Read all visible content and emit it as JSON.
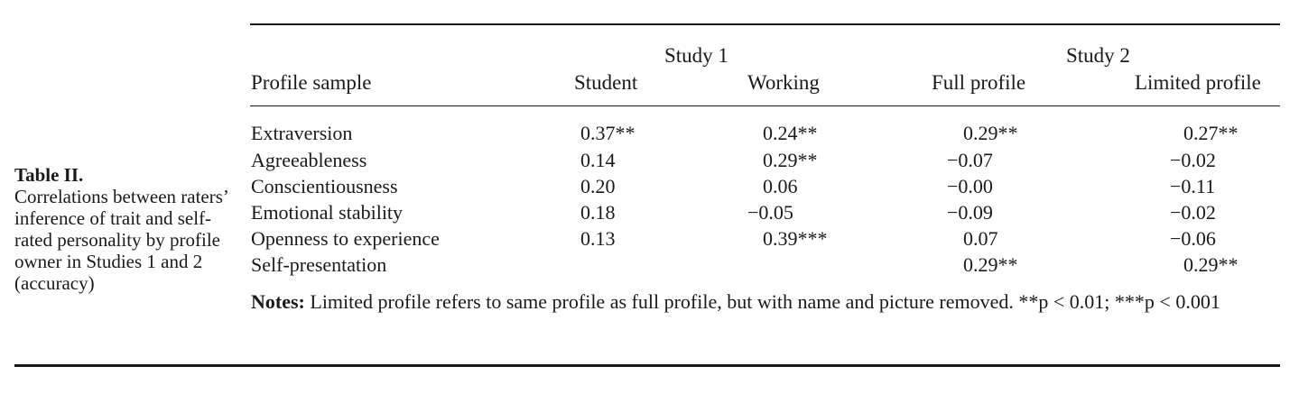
{
  "caption": {
    "title": "Table II.",
    "text": "Correlations between raters’ inference of trait and self-rated personality by profile owner in Studies 1 and 2 (accuracy)"
  },
  "table": {
    "study_headers": [
      "Study 1",
      "Study 2"
    ],
    "row_header_label": "Profile sample",
    "columns": [
      "Student",
      "Working",
      "Full profile",
      "Limited profile"
    ],
    "rows": [
      {
        "label": "Extraversion",
        "values": [
          "0.37**",
          "0.24**",
          "0.29**",
          "0.27**"
        ]
      },
      {
        "label": "Agreeableness",
        "values": [
          "0.14",
          "0.29**",
          "−0.07",
          "−0.02"
        ]
      },
      {
        "label": "Conscientiousness",
        "values": [
          "0.20",
          "0.06",
          "−0.00",
          "−0.11"
        ]
      },
      {
        "label": "Emotional stability",
        "values": [
          "0.18",
          "−0.05",
          "−0.09",
          "−0.02"
        ]
      },
      {
        "label": "Openness to experience",
        "values": [
          "0.13",
          "0.39***",
          "0.07",
          "−0.06"
        ]
      },
      {
        "label": "Self-presentation",
        "values": [
          "",
          "",
          "0.29**",
          "0.29**"
        ]
      }
    ]
  },
  "notes": {
    "label": "Notes:",
    "text": " Limited profile refers to same profile as full profile, but with name and picture removed. **p < 0.01; ***p < 0.001"
  }
}
